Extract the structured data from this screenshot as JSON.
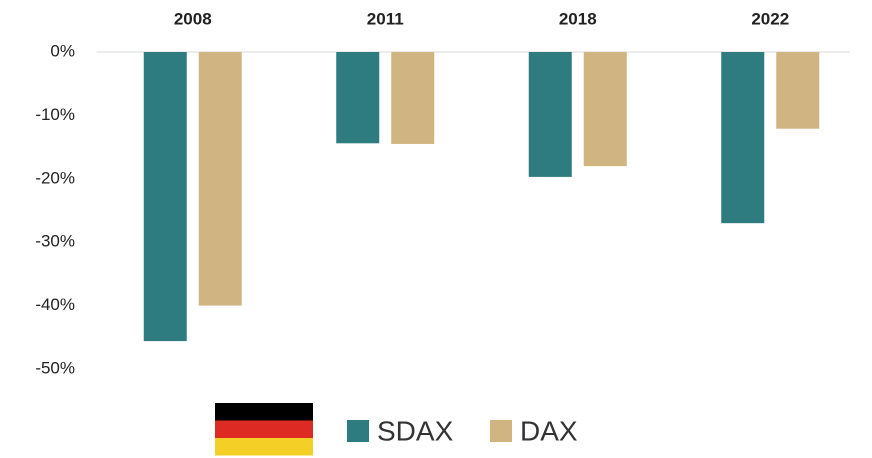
{
  "chart_data": {
    "type": "bar",
    "categories": [
      "2008",
      "2011",
      "2018",
      "2022"
    ],
    "series": [
      {
        "name": "SDAX",
        "color": "#2e7b80",
        "values": [
          -45.6,
          -14.4,
          -19.7,
          -27
        ]
      },
      {
        "name": "DAX",
        "color": "#d0b482",
        "values": [
          -40,
          -14.5,
          -18,
          -12.1
        ]
      }
    ],
    "ylim": [
      -50,
      0
    ],
    "yticks": [
      {
        "value": 0,
        "label": "0%"
      },
      {
        "value": -10,
        "label": "-10%"
      },
      {
        "value": -20,
        "label": "-20%"
      },
      {
        "value": -30,
        "label": "-30%"
      },
      {
        "value": -40,
        "label": "-40%"
      },
      {
        "value": -50,
        "label": "-50%"
      }
    ],
    "grid": false
  }
}
